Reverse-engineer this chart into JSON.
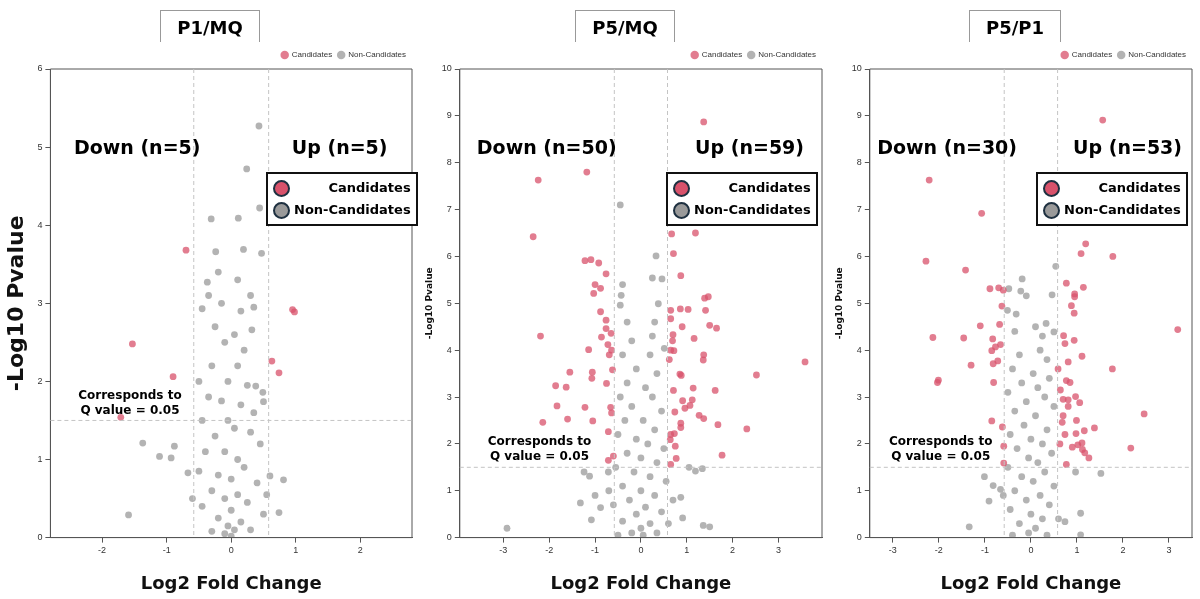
{
  "chart_data": [
    {
      "type": "scatter",
      "title": "P1/MQ",
      "xlabel": "Log2 Fold Change",
      "ylabel": "-Log10 Pvalue",
      "xlim": [
        -2.8,
        2.8
      ],
      "xticks": [
        -2,
        -1,
        0,
        1,
        2
      ],
      "ylim": [
        0,
        6
      ],
      "yticks": [
        0,
        1,
        2,
        3,
        4,
        5,
        6
      ],
      "grid": false,
      "legend": "top right",
      "marker": "circle",
      "annotations": [
        "Down (n=5)",
        "Up (n=5)",
        "Corresponds to\nQ value = 0.05"
      ],
      "ref_lines": [
        {
          "axis": "x",
          "value": -0.58
        },
        {
          "axis": "x",
          "value": 0.58
        },
        {
          "axis": "y",
          "value": 1.5
        }
      ],
      "series": [
        {
          "name": "Candidates",
          "color": "#d9526b",
          "x": [
            -0.7,
            -1.53,
            -0.9,
            -1.71,
            0.95,
            0.98,
            0.63,
            0.74
          ],
          "values": [
            3.68,
            2.48,
            2.06,
            1.54,
            2.92,
            2.89,
            2.26,
            2.11
          ]
        },
        {
          "name": "Non-Candidates",
          "color": "#9a9a9a",
          "x": [
            0.43,
            0.24,
            0.44,
            -0.31,
            0.11,
            0.47,
            -0.24,
            -1.37,
            -1.11,
            -0.93,
            -0.88,
            -1.59,
            -0.67,
            0.6,
            0.81,
            0.74,
            0.35,
            0.32,
            0.49,
            0.5,
            0.38,
            -0.45,
            -0.37,
            0.19,
            -0.2,
            0.1,
            -0.15,
            0.15,
            -0.25,
            0.05,
            -0.1,
            0.2,
            -0.3,
            0.1,
            -0.05,
            0.25,
            -0.35,
            -0.15,
            0.15,
            0.35,
            -0.45,
            -0.05,
            0.05,
            0.3,
            -0.25,
            0.45,
            -0.4,
            -0.1,
            0.1,
            0.2,
            -0.5,
            -0.2,
            0,
            0.4,
            -0.3,
            0.1,
            -0.1,
            0.25,
            -0.45,
            0,
            0.5,
            -0.2,
            0.15,
            -0.05,
            0.05,
            -0.3,
            0.3,
            -0.1,
            0,
            -0.6,
            0.55,
            -0.35,
            0.3,
            -0.5
          ],
          "values": [
            5.27,
            4.72,
            4.22,
            4.08,
            4.09,
            3.64,
            3.66,
            1.21,
            1.04,
            1.02,
            1.17,
            0.29,
            0.83,
            0.79,
            0.74,
            0.32,
            2.95,
            2.66,
            1.86,
            1.74,
            1.94,
            2.93,
            3.27,
            3.69,
            3.4,
            3.3,
            3.0,
            2.9,
            2.7,
            2.6,
            2.5,
            2.4,
            2.2,
            2.2,
            2.0,
            1.95,
            1.8,
            1.75,
            1.7,
            1.6,
            1.5,
            1.5,
            1.4,
            1.35,
            1.3,
            1.2,
            1.1,
            1.1,
            1.0,
            0.9,
            0.85,
            0.8,
            0.75,
            0.7,
            0.6,
            0.55,
            0.5,
            0.45,
            0.4,
            0.35,
            0.3,
            0.25,
            0.2,
            0.15,
            0.1,
            0.08,
            0.1,
            0.05,
            0.02,
            0.5,
            0.55,
            3.1,
            3.1,
            2.0
          ]
        }
      ]
    },
    {
      "type": "scatter",
      "title": "P5/MQ",
      "xlabel": "Log2 Fold Change",
      "ylabel": "-Log10 Pvalue",
      "xlim": [
        -3.95,
        3.95
      ],
      "xticks": [
        -3,
        -2,
        -1,
        0,
        1,
        2,
        3
      ],
      "ylim": [
        0,
        10
      ],
      "yticks": [
        0,
        1,
        2,
        3,
        4,
        5,
        6,
        7,
        8,
        9,
        10
      ],
      "grid": false,
      "legend": "top right",
      "marker": "circle",
      "annotations": [
        "Down (n=50)",
        "Up (n=59)",
        "Corresponds to\nQ value = 0.05"
      ],
      "ref_lines": [
        {
          "axis": "x",
          "value": -0.58
        },
        {
          "axis": "x",
          "value": 0.58
        },
        {
          "axis": "y",
          "value": 1.5
        }
      ],
      "series": [
        {
          "name": "Candidates",
          "color": "#d9526b",
          "x": [
            -2.24,
            -1.18,
            -2.35,
            -2.19,
            -1.22,
            -1.09,
            -0.92,
            -0.76,
            -1.0,
            -0.88,
            -1.03,
            -0.88,
            -0.76,
            -0.76,
            -0.86,
            -0.65,
            -1.14,
            -0.72,
            -0.64,
            -0.69,
            -0.62,
            -1.55,
            -1.06,
            -1.07,
            -0.75,
            -1.86,
            -1.63,
            -1.83,
            -1.22,
            -0.66,
            -0.64,
            -1.6,
            -1.05,
            -2.14,
            -0.71,
            -0.71,
            -0.6,
            1.37,
            0.67,
            1.19,
            0.71,
            0.87,
            1.39,
            1.47,
            0.65,
            0.86,
            1.03,
            1.41,
            0.65,
            1.5,
            1.65,
            0.9,
            0.7,
            0.69,
            1.16,
            0.65,
            0.72,
            1.37,
            1.36,
            0.62,
            3.58,
            2.52,
            0.85,
            0.88,
            1.14,
            0.71,
            1.62,
            0.91,
            1.12,
            0.96,
            1.07,
            0.74,
            1.27,
            1.37,
            0.87,
            0.87,
            1.68,
            2.31,
            0.65,
            0.73,
            0.64,
            0.75,
            1.77,
            0.77,
            0.65
          ],
          "values": [
            7.63,
            7.8,
            6.42,
            4.3,
            5.91,
            5.93,
            5.86,
            5.63,
            5.4,
            5.32,
            5.21,
            4.82,
            4.64,
            4.46,
            4.28,
            4.36,
            4.01,
            4.12,
            4.0,
            3.9,
            3.58,
            3.53,
            3.53,
            3.4,
            3.29,
            3.24,
            3.21,
            2.81,
            2.78,
            2.78,
            2.66,
            2.53,
            2.49,
            2.46,
            2.26,
            1.65,
            1.74,
            8.87,
            6.48,
            6.5,
            6.06,
            5.59,
            5.11,
            5.14,
            4.85,
            4.88,
            4.87,
            4.85,
            4.67,
            4.53,
            4.47,
            4.5,
            4.33,
            4.2,
            4.25,
            4.0,
            3.99,
            3.9,
            3.79,
            3.8,
            3.75,
            3.47,
            3.49,
            3.46,
            3.19,
            3.14,
            3.14,
            2.92,
            2.94,
            2.76,
            2.82,
            2.68,
            2.61,
            2.54,
            2.44,
            2.35,
            2.41,
            2.32,
            2.2,
            2.22,
            2.09,
            1.95,
            1.76,
            1.69,
            1.56
          ]
        },
        {
          "name": "Non-Candidates",
          "color": "#9a9a9a",
          "x": [
            -0.45,
            0.33,
            0.25,
            0.46,
            -0.4,
            -0.43,
            -0.45,
            0.38,
            -2.92,
            -1.24,
            -1.12,
            -1.32,
            -1.08,
            -1.0,
            -0.88,
            1.05,
            1.19,
            1.34,
            1.36,
            1.5,
            0.87,
            0.91,
            -0.71,
            0.51,
            -0.3,
            0.3,
            -0.2,
            0.25,
            -0.4,
            0.2,
            -0.1,
            0.35,
            -0.3,
            0.1,
            -0.45,
            0.25,
            -0.2,
            0.45,
            -0.35,
            0.05,
            0.3,
            -0.5,
            -0.1,
            0.15,
            0.5,
            -0.3,
            0,
            0.35,
            -0.55,
            -0.15,
            0.2,
            0.55,
            -0.4,
            0,
            0.3,
            -0.25,
            -0.6,
            0.1,
            0.45,
            -0.1,
            -0.4,
            0.2,
            0,
            -0.2,
            0.35,
            0.6,
            0.05,
            -0.5,
            0.7,
            -0.7
          ],
          "values": [
            7.1,
            6.01,
            5.54,
            5.52,
            5.4,
            5.17,
            4.96,
            4.99,
            0.2,
            1.4,
            1.31,
            0.74,
            0.38,
            0.9,
            0.64,
            1.5,
            1.42,
            1.47,
            0.26,
            0.23,
            0.86,
            0.42,
            1.4,
            4.04,
            4.6,
            4.6,
            4.2,
            4.3,
            3.9,
            3.9,
            3.6,
            3.5,
            3.3,
            3.2,
            3.0,
            3.0,
            2.8,
            2.7,
            2.5,
            2.5,
            2.3,
            2.2,
            2.1,
            2.0,
            1.9,
            1.8,
            1.7,
            1.6,
            1.5,
            1.4,
            1.3,
            1.2,
            1.1,
            1.0,
            0.9,
            0.8,
            0.7,
            0.65,
            0.55,
            0.5,
            0.35,
            0.3,
            0.2,
            0.1,
            0.1,
            0.3,
            0.05,
            0.05,
            0.8,
            1.0
          ]
        }
      ]
    },
    {
      "type": "scatter",
      "title": "P5/P1",
      "xlabel": "Log2 Fold Change",
      "ylabel": "-Log10 Pvalue",
      "xlim": [
        -3.5,
        3.5
      ],
      "xticks": [
        -3,
        -2,
        -1,
        0,
        1,
        2,
        3
      ],
      "ylim": [
        0,
        10
      ],
      "yticks": [
        0,
        1,
        2,
        3,
        4,
        5,
        6,
        7,
        8,
        9,
        10
      ],
      "grid": false,
      "legend": "top right",
      "marker": "circle",
      "annotations": [
        "Down (n=30)",
        "Up (n=53)",
        "Corresponds to\nQ value = 0.05"
      ],
      "ref_lines": [
        {
          "axis": "x",
          "value": -0.58
        },
        {
          "axis": "x",
          "value": 0.58
        },
        {
          "axis": "y",
          "value": 1.5
        }
      ],
      "series": [
        {
          "name": "Candidates",
          "color": "#d9526b",
          "x": [
            -2.21,
            -1.07,
            -2.28,
            -1.42,
            -0.89,
            -0.7,
            -0.6,
            -0.63,
            -1.1,
            -0.68,
            -2.13,
            -1.46,
            -0.83,
            -0.66,
            -0.77,
            -0.85,
            -0.72,
            -0.82,
            -1.3,
            -2.01,
            -2.03,
            -0.81,
            -0.85,
            -0.62,
            -0.59,
            -0.59,
            1.56,
            1.19,
            1.09,
            1.78,
            0.77,
            1.14,
            0.95,
            0.95,
            0.88,
            0.94,
            3.19,
            0.71,
            0.74,
            0.94,
            1.11,
            0.81,
            1.77,
            0.59,
            0.77,
            0.85,
            0.64,
            0.7,
            0.81,
            0.97,
            0.81,
            1.06,
            2.46,
            0.7,
            0.99,
            0.68,
            1.38,
            1.16,
            0.98,
            0.74,
            1.02,
            1.11,
            0.63,
            0.9,
            1.12,
            1.17,
            2.17,
            1.26,
            0.77
          ],
          "values": [
            7.63,
            6.92,
            5.9,
            5.71,
            5.31,
            5.33,
            5.28,
            4.94,
            4.52,
            4.55,
            4.27,
            4.26,
            4.24,
            4.12,
            4.07,
            3.99,
            3.77,
            3.71,
            3.68,
            3.36,
            3.31,
            3.31,
            2.49,
            2.36,
            1.95,
            1.59,
            8.91,
            6.27,
            6.06,
            6.0,
            5.43,
            5.34,
            5.2,
            5.14,
            4.95,
            4.79,
            4.44,
            4.31,
            4.14,
            4.21,
            3.87,
            3.75,
            3.6,
            3.6,
            3.35,
            3.31,
            3.15,
            2.95,
            2.94,
            3.01,
            2.8,
            2.88,
            2.64,
            2.6,
            2.5,
            2.46,
            2.34,
            2.28,
            2.22,
            2.2,
            1.98,
            2.02,
            2.0,
            1.93,
            1.88,
            1.81,
            1.91,
            1.7,
            1.56
          ]
        },
        {
          "name": "Non-Candidates",
          "color": "#9a9a9a",
          "x": [
            0.54,
            -0.19,
            -0.22,
            -0.1,
            0.46,
            -0.48,
            -0.51,
            -0.32,
            -1.01,
            -0.82,
            -0.91,
            -0.66,
            0.97,
            1.52,
            1.08,
            0.74,
            -1.34,
            1.08,
            0.33,
            0.5,
            0.1,
            0.25,
            -0.35,
            0.2,
            -0.25,
            0.35,
            -0.4,
            0.05,
            0.4,
            -0.2,
            0.15,
            -0.5,
            0.3,
            -0.1,
            0.5,
            -0.35,
            0.1,
            -0.15,
            0.35,
            -0.45,
            0,
            0.25,
            -0.3,
            0.45,
            -0.05,
            0.15,
            -0.5,
            0.3,
            -0.2,
            0.05,
            0.5,
            -0.35,
            0.2,
            -0.1,
            0.4,
            -0.45,
            0,
            0.25,
            -0.25,
            0.1,
            -0.05,
            0.35,
            -0.4,
            0.6,
            -0.6
          ],
          "values": [
            5.79,
            5.52,
            5.26,
            5.16,
            5.18,
            5.31,
            4.85,
            4.77,
            1.3,
            1.11,
            0.78,
            1.03,
            1.4,
            1.37,
            0.52,
            0.34,
            0.23,
            0.06,
            4.57,
            4.39,
            4.5,
            4.3,
            4.4,
            4.0,
            3.9,
            3.8,
            3.6,
            3.5,
            3.4,
            3.3,
            3.2,
            3.1,
            3.0,
            2.9,
            2.8,
            2.7,
            2.6,
            2.4,
            2.3,
            2.2,
            2.1,
            2.0,
            1.9,
            1.8,
            1.7,
            1.6,
            1.5,
            1.4,
            1.3,
            1.2,
            1.1,
            1.0,
            0.9,
            0.8,
            0.7,
            0.6,
            0.5,
            0.4,
            0.3,
            0.2,
            0.1,
            0.05,
            0.05,
            0.4,
            0.9
          ]
        }
      ]
    }
  ]
}
